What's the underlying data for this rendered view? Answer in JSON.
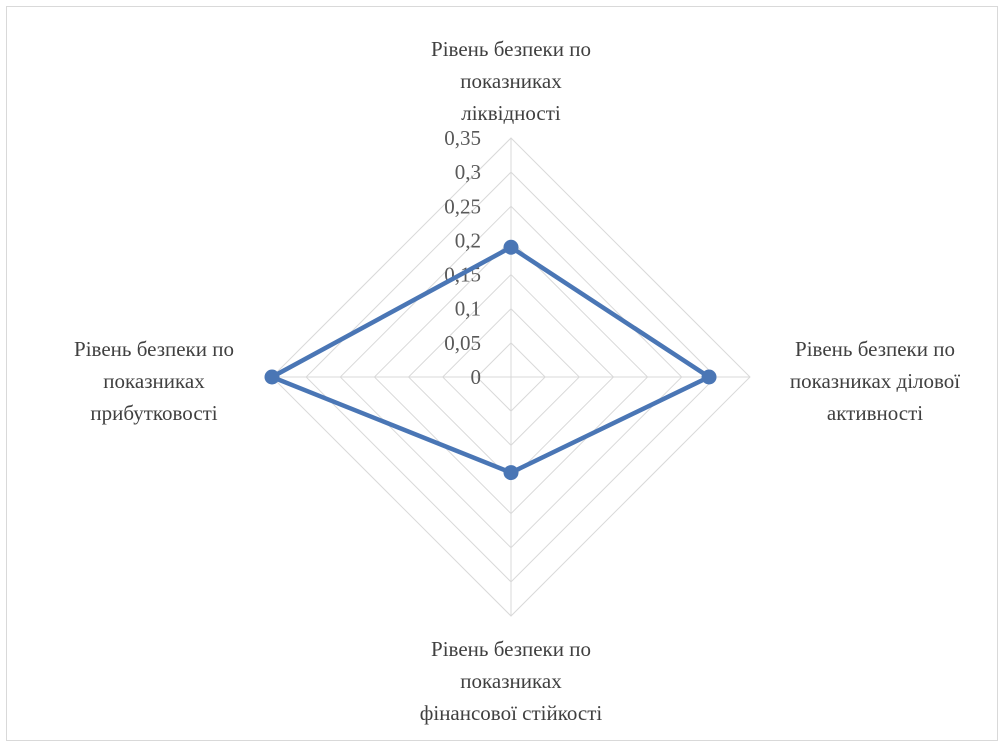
{
  "chart_data": {
    "type": "radar",
    "title": "",
    "categories": [
      [
        "Рівень безпеки по",
        "показниках",
        "ліквідності"
      ],
      [
        "Рівень безпеки по",
        "показниках ділової",
        "активності"
      ],
      [
        "Рівень безпеки по",
        "показниках",
        "фінансової стійкості"
      ],
      [
        "Рівень безпеки по",
        "показниках",
        "прибутковості"
      ]
    ],
    "tick_labels": [
      "0",
      "0,05",
      "0,1",
      "0,15",
      "0,2",
      "0,25",
      "0,3",
      "0,35"
    ],
    "rlim": [
      0,
      0.35
    ],
    "grid": true,
    "legend": "none",
    "series": [
      {
        "values": [
          0.19,
          0.29,
          0.14,
          0.35
        ],
        "color": "#4a76b5"
      }
    ],
    "colors": {
      "grid": "#d9d9d9",
      "text": "#404040",
      "tick_text": "#595959",
      "border": "#d9d9d9"
    }
  }
}
